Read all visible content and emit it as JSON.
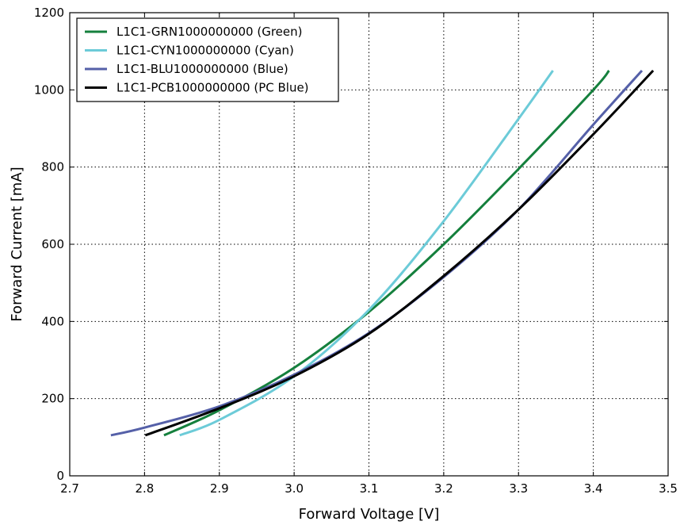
{
  "chart_data": {
    "type": "line",
    "title": "",
    "xlabel": "Forward Voltage [V]",
    "ylabel": "Forward Current [mA]",
    "xlim": [
      2.7,
      3.5
    ],
    "ylim": [
      0,
      1200
    ],
    "xticks": [
      "2.7",
      "2.8",
      "2.9",
      "3.0",
      "3.1",
      "3.2",
      "3.3",
      "3.4",
      "3.5"
    ],
    "yticks": [
      "0",
      "200",
      "400",
      "600",
      "800",
      "1000",
      "1200"
    ],
    "grid": true,
    "legend_position": "top-left",
    "series": [
      {
        "name": "L1C1-GRN1000000000 (Green)",
        "color": "#15803d",
        "points": [
          [
            2.826,
            105
          ],
          [
            2.9,
            170
          ],
          [
            3.0,
            280
          ],
          [
            3.1,
            425
          ],
          [
            3.2,
            600
          ],
          [
            3.3,
            795
          ],
          [
            3.4,
            1000
          ],
          [
            3.421,
            1050
          ]
        ]
      },
      {
        "name": "L1C1-CYN1000000000 (Cyan)",
        "color": "#6ccbd8",
        "points": [
          [
            2.847,
            105
          ],
          [
            2.9,
            145
          ],
          [
            3.0,
            258
          ],
          [
            3.1,
            430
          ],
          [
            3.2,
            660
          ],
          [
            3.3,
            925
          ],
          [
            3.346,
            1050
          ]
        ]
      },
      {
        "name": "L1C1-BLU1000000000 (Blue)",
        "color": "#5560a8",
        "points": [
          [
            2.755,
            105
          ],
          [
            2.8,
            125
          ],
          [
            2.9,
            180
          ],
          [
            3.0,
            262
          ],
          [
            3.1,
            370
          ],
          [
            3.2,
            515
          ],
          [
            3.3,
            690
          ],
          [
            3.4,
            910
          ],
          [
            3.465,
            1050
          ]
        ]
      },
      {
        "name": "L1C1-PCB1000000000 (PC Blue)",
        "color": "#000000",
        "points": [
          [
            2.801,
            105
          ],
          [
            2.9,
            175
          ],
          [
            3.0,
            258
          ],
          [
            3.1,
            368
          ],
          [
            3.2,
            518
          ],
          [
            3.3,
            690
          ],
          [
            3.4,
            885
          ],
          [
            3.48,
            1050
          ]
        ]
      }
    ]
  }
}
